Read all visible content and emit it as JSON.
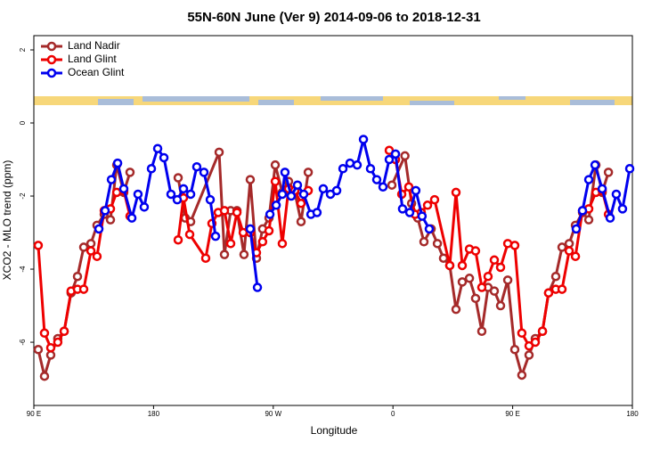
{
  "chart_data": {
    "type": "line",
    "title": "55N-60N June (Ver 9)   2014-09-06 to 2018-12-31",
    "x_label": "Longitude",
    "y_label": "XCO2 - MLO trend (ppm)",
    "xlim": [
      90,
      540
    ],
    "xticks": [
      {
        "value": 90,
        "label": "90 E"
      },
      {
        "value": 180,
        "label": "180"
      },
      {
        "value": 270,
        "label": "90 W"
      },
      {
        "value": 360,
        "label": "0"
      },
      {
        "value": 450,
        "label": "90 E"
      },
      {
        "value": 540,
        "label": "180"
      }
    ],
    "ylim": [
      -7.73,
      2.39
    ],
    "yticks": [
      -6,
      -4,
      -2,
      0,
      2
    ],
    "legend": "top-left",
    "series": [
      {
        "name": "Land Nadir",
        "color": "#a52a2a",
        "x": [
          93.3,
          98,
          102.7,
          108,
          112.8,
          118,
          122.8,
          127.5,
          132.9,
          137.5,
          142.9,
          147.6,
          152.3,
          157.6,
          162.3,
          null,
          198.5,
          203.8,
          207.9,
          229.3,
          233.3,
          238,
          242.7,
          248,
          252.7,
          257.4,
          262,
          266.8,
          271.5,
          276.8,
          281.5,
          286.2,
          290.9,
          296.3,
          null,
          359.2,
          369,
          374,
          378.6,
          383.3,
          388.7,
          393.4,
          398,
          402.7,
          407.4,
          412.1,
          417.5,
          422.1,
          426.8,
          431.5,
          436.2,
          440.9,
          446.3,
          451.6,
          456.9,
          462.3,
          467,
          472.4,
          477,
          482.4,
          487.1,
          492.5,
          497.2,
          502.5,
          507.2,
          512.6,
          517.3,
          522
        ],
        "values": [
          -6.2,
          -6.93,
          -6.35,
          -5.9,
          -5.7,
          -4.65,
          -4.2,
          -3.4,
          -3.3,
          -2.8,
          -2.5,
          -2.65,
          -1.15,
          -1.9,
          -1.35,
          null,
          -1.5,
          -2.6,
          -2.7,
          -0.8,
          -3.6,
          -2.4,
          -2.4,
          -3.6,
          -1.55,
          -3.7,
          -2.9,
          -2.6,
          -1.15,
          -1.9,
          -1.6,
          -1.9,
          -2.7,
          -1.35,
          null,
          -1.7,
          -0.9,
          -2.2,
          -2.6,
          -3.25,
          -2.9,
          -3.3,
          -3.7,
          -3.9,
          -5.1,
          -4.35,
          -4.25,
          -4.8,
          -5.7,
          -4.5,
          -4.6,
          -5.0,
          -4.3,
          -6.2,
          -6.9,
          -6.35,
          -5.9,
          -5.7,
          -4.65,
          -4.2,
          -3.4,
          -3.3,
          -2.8,
          -2.45,
          -2.65,
          -1.15,
          -1.9,
          -1.35
        ]
      },
      {
        "name": "Land Glint",
        "color": "#ee0000",
        "x": [
          93.3,
          98,
          102.7,
          108,
          112.8,
          118,
          122.8,
          127.5,
          132.9,
          137.5,
          142.9,
          147.6,
          152.3,
          157.6,
          162.3,
          null,
          198.5,
          202.5,
          207.2,
          219.2,
          223.9,
          228.6,
          233.3,
          238,
          242.7,
          247.4,
          252.7,
          257.4,
          262,
          266.8,
          271.5,
          276.8,
          281.5,
          286.2,
          290.9,
          296.3,
          null,
          357.2,
          361.9,
          366.6,
          371.9,
          376.6,
          381.3,
          386,
          391.3,
          402.7,
          407.4,
          412.1,
          417.5,
          422.1,
          426.8,
          431.5,
          436.2,
          440.9,
          446.3,
          451.6,
          456.9,
          462.3,
          467,
          472.4,
          477,
          482.4,
          487.1,
          492.5,
          497.2,
          502.5,
          507.2,
          512.6,
          517.3,
          522
        ],
        "values": [
          -3.35,
          -5.75,
          -6.15,
          -6.0,
          -5.7,
          -4.6,
          -4.55,
          -4.55,
          -3.5,
          -3.65,
          -2.4,
          -2.35,
          -1.9,
          -1.85,
          -2.55,
          null,
          -3.2,
          -2.05,
          -3.05,
          -3.7,
          -2.75,
          -2.45,
          -2.4,
          -3.3,
          -2.45,
          -3.0,
          -3.0,
          -3.55,
          -3.25,
          -2.95,
          -1.6,
          -3.3,
          -1.8,
          -1.85,
          -2.2,
          -1.85,
          null,
          -0.75,
          -1.0,
          -1.95,
          -1.75,
          -2.5,
          -2.45,
          -2.25,
          -2.1,
          -3.9,
          -1.9,
          -3.9,
          -3.45,
          -3.5,
          -4.5,
          -4.2,
          -3.75,
          -3.95,
          -3.3,
          -3.35,
          -5.75,
          -6.1,
          -6.0,
          -5.7,
          -4.65,
          -4.55,
          -4.55,
          -3.5,
          -3.65,
          -2.4,
          -2.35,
          -1.9,
          -1.85,
          -2.5
        ]
      },
      {
        "name": "Ocean Glint",
        "color": "#0000ee",
        "x": [
          138.9,
          143.6,
          148.3,
          153,
          157.6,
          163.7,
          168.3,
          173,
          178.4,
          183.1,
          187.8,
          193.1,
          197.8,
          202.5,
          207.9,
          212.5,
          217.9,
          222.6,
          226.6,
          null,
          252.7,
          258.1,
          null,
          267.5,
          272.2,
          276.8,
          278.8,
          283.5,
          288.2,
          292.9,
          298.3,
          302.9,
          307.6,
          313,
          317.7,
          322.4,
          327.7,
          333.1,
          337.8,
          343.1,
          347.8,
          352.5,
          357.2,
          361.9,
          367.2,
          372.6,
          377.2,
          381.9,
          387.3,
          null,
          497.8,
          502.5,
          507.2,
          511.9,
          517.3,
          523.3,
          527.9,
          532.6,
          538
        ],
        "values": [
          -2.9,
          -2.4,
          -1.55,
          -1.1,
          -1.8,
          -2.6,
          -1.95,
          -2.3,
          -1.25,
          -0.7,
          -0.95,
          -1.95,
          -2.1,
          -1.8,
          -1.95,
          -1.2,
          -1.35,
          -2.1,
          -3.1,
          null,
          -2.9,
          -4.5,
          null,
          -2.5,
          -2.25,
          -1.95,
          -1.35,
          -2.0,
          -1.7,
          -1.95,
          -2.5,
          -2.45,
          -1.8,
          -1.95,
          -1.85,
          -1.25,
          -1.1,
          -1.15,
          -0.45,
          -1.25,
          -1.55,
          -1.75,
          -1.0,
          -0.85,
          -2.35,
          -2.45,
          -1.85,
          -2.55,
          -2.9,
          null,
          -2.9,
          -2.4,
          -1.55,
          -1.15,
          -1.8,
          -2.6,
          -1.95,
          -2.35,
          -1.25
        ]
      }
    ]
  }
}
